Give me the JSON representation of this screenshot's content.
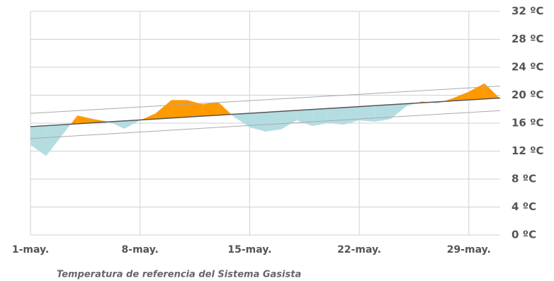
{
  "chart_data": {
    "type": "band-area",
    "caption": "Temperatura de referencia del Sistema Gasista",
    "xlim": [
      1,
      31
    ],
    "xticks": [
      {
        "value": 1,
        "label": "1-may."
      },
      {
        "value": 8,
        "label": "8-may."
      },
      {
        "value": 15,
        "label": "15-may."
      },
      {
        "value": 22,
        "label": "22-may."
      },
      {
        "value": 29,
        "label": "29-may."
      }
    ],
    "ylim": [
      0,
      32
    ],
    "yticks": [
      {
        "value": 0,
        "label": "0 ºC"
      },
      {
        "value": 4,
        "label": "4 ºC"
      },
      {
        "value": 8,
        "label": "8 ºC"
      },
      {
        "value": 12,
        "label": "12 ºC"
      },
      {
        "value": 16,
        "label": "16 ºC"
      },
      {
        "value": 20,
        "label": "20 ºC"
      },
      {
        "value": 24,
        "label": "24 ºC"
      },
      {
        "value": 28,
        "label": "28 ºC"
      },
      {
        "value": 32,
        "label": "32 ºC"
      }
    ],
    "grid": true,
    "above_color": "#ff9900",
    "below_color": "#b4dde2",
    "series": [
      {
        "role": "actual",
        "x": [
          1,
          2,
          3,
          4,
          5,
          6,
          7,
          8,
          9,
          10,
          11,
          12,
          13,
          14,
          15,
          16,
          17,
          18,
          19,
          20,
          21,
          22,
          23,
          24,
          25,
          26,
          27,
          28,
          29,
          30,
          31
        ],
        "values": [
          12.9,
          11.3,
          14.2,
          17.1,
          16.6,
          16.2,
          15.2,
          16.4,
          17.4,
          19.3,
          19.3,
          18.7,
          19.0,
          16.9,
          15.4,
          14.8,
          15.1,
          16.4,
          15.6,
          16.0,
          15.8,
          16.4,
          16.2,
          16.6,
          18.4,
          19.1,
          18.8,
          19.6,
          20.5,
          21.7,
          19.5
        ]
      },
      {
        "role": "reference",
        "color": "#555555",
        "x": [
          1,
          31
        ],
        "values": [
          15.5,
          19.6
        ]
      },
      {
        "role": "band",
        "color": "#aaaaaa",
        "x": [
          1,
          31
        ],
        "values": [
          17.4,
          21.3
        ]
      },
      {
        "role": "band",
        "color": "#aaaaaa",
        "x": [
          1,
          31
        ],
        "values": [
          13.8,
          17.8
        ]
      }
    ]
  }
}
